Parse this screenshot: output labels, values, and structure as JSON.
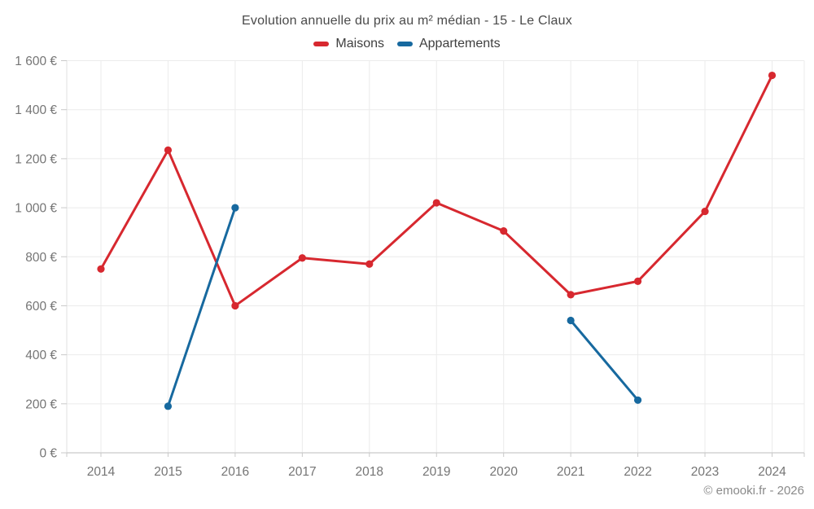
{
  "page": {
    "footer": "© emooki.fr - 2026"
  },
  "legend": {
    "items": [
      {
        "label": "Maisons",
        "color": "#d7282f"
      },
      {
        "label": "Appartements",
        "color": "#17699f"
      }
    ]
  },
  "chart_data": {
    "type": "line",
    "title": "Evolution annuelle du prix au m² médian - 15 - Le Claux",
    "x": [
      "2014",
      "2015",
      "2016",
      "2017",
      "2018",
      "2019",
      "2020",
      "2021",
      "2022",
      "2023",
      "2024"
    ],
    "series": [
      {
        "name": "Maisons",
        "color": "#d7282f",
        "values": [
          750,
          1235,
          600,
          795,
          770,
          1020,
          905,
          645,
          700,
          985,
          1540
        ]
      },
      {
        "name": "Appartements",
        "color": "#17699f",
        "values": [
          null,
          190,
          1000,
          null,
          null,
          null,
          null,
          540,
          215,
          null,
          null
        ]
      }
    ],
    "xlabel": "",
    "ylabel": "",
    "ylim": [
      0,
      1600
    ],
    "ytick_step": 200,
    "ytick_labels": [
      "0 €",
      "200 €",
      "400 €",
      "600 €",
      "800 €",
      "1 000 €",
      "1 200 €",
      "1 400 €",
      "1 600 €"
    ],
    "unit": "€",
    "grid": true,
    "legend_position": "top"
  },
  "colors": {
    "background": "#ffffff",
    "grid": "#ebebeb",
    "axis_line": "#c9c9c9",
    "left_axis_line": "#e2e2e2",
    "axis_text": "#757575",
    "title_text": "#4a4a4a",
    "footer_text": "#8a8a8a"
  }
}
